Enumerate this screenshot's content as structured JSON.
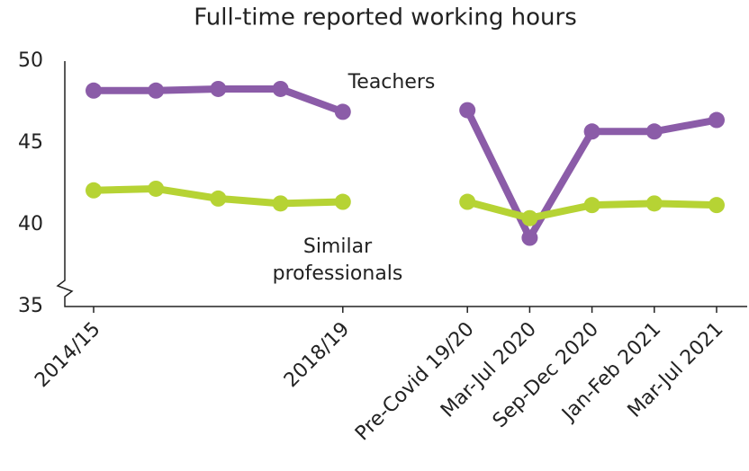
{
  "chart_data": {
    "type": "line",
    "title": "Full-time reported working hours",
    "categories": [
      "2014/15",
      null,
      null,
      null,
      "2018/19",
      null,
      "Pre-Covid 19/20",
      "Mar-Jul 2020",
      "Sep-Dec 2020",
      "Jan-Feb 2021",
      "Mar-Jul 2021"
    ],
    "series": [
      {
        "name": "Teachers",
        "color": "#8b5ca8",
        "values": [
          48.2,
          48.2,
          48.3,
          48.3,
          46.9,
          null,
          47.0,
          39.2,
          45.7,
          45.7,
          46.4
        ]
      },
      {
        "name": "Similar professionals",
        "color": "#b6d334",
        "values": [
          42.1,
          42.2,
          41.6,
          41.3,
          41.4,
          null,
          41.4,
          40.4,
          41.2,
          41.3,
          41.2
        ]
      }
    ],
    "ylim": [
      35,
      50
    ],
    "yticks": [
      35,
      40,
      45,
      50
    ],
    "grid": false
  }
}
